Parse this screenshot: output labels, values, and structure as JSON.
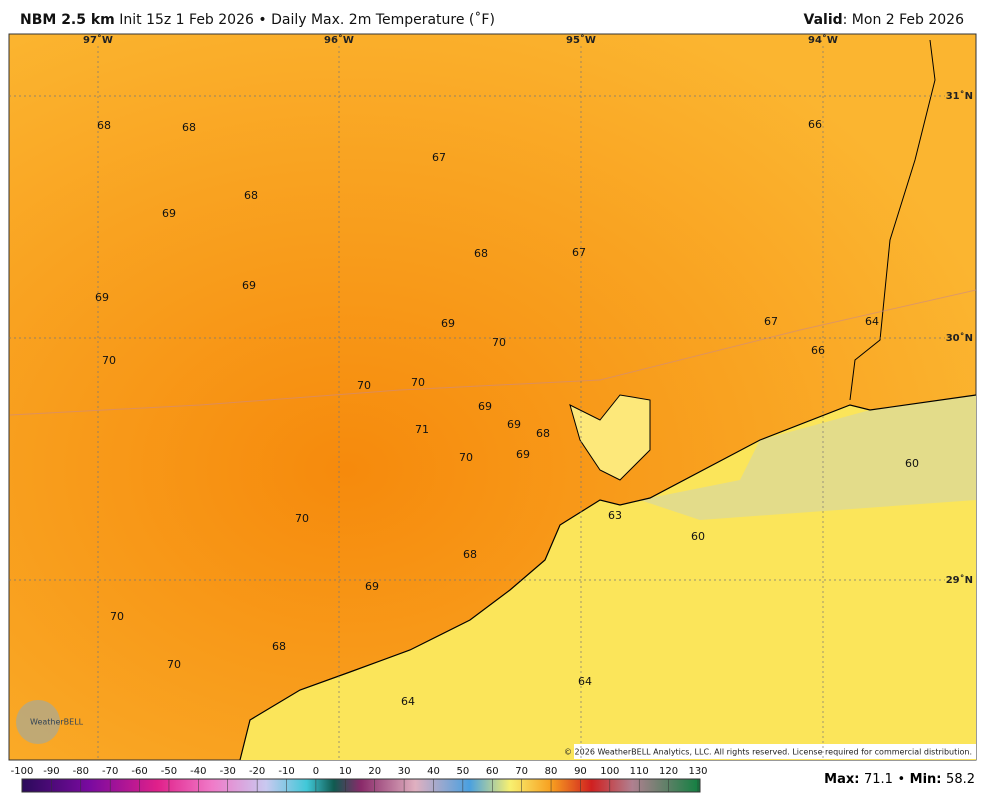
{
  "header": {
    "model": "NBM 2.5 km",
    "init": "Init 15z 1 Feb 2026",
    "separator": "•",
    "product": "Daily Max. 2m Temperature (˚F)",
    "valid": {
      "label": "Valid",
      "text": ": Mon 2 Feb 2026"
    }
  },
  "map": {
    "longitudes": [
      "97˚W",
      "96˚W",
      "95˚W",
      "94˚W"
    ],
    "latitudes": [
      "31˚N",
      "30˚N",
      "29˚N"
    ],
    "stations": [
      68,
      68,
      67,
      66,
      68,
      69,
      68,
      67,
      69,
      69,
      69,
      70,
      67,
      64,
      66,
      70,
      70,
      70,
      69,
      69,
      68,
      71,
      70,
      69,
      60,
      63,
      70,
      60,
      68,
      69,
      70,
      68,
      70,
      64,
      64
    ],
    "logo": "WeatherBELL",
    "copyright": "© 2026 WeatherBELL Analytics, LLC. All rights reserved. License required for commercial distribution."
  },
  "colorbar": {
    "ticks": [
      -100,
      -90,
      -80,
      -70,
      -60,
      -50,
      -40,
      -30,
      -20,
      -10,
      0,
      10,
      20,
      30,
      40,
      50,
      60,
      70,
      80,
      90,
      100,
      110,
      120,
      130
    ]
  },
  "footer": {
    "max_label": "Max:",
    "max": 71.1,
    "separator": "•",
    "min_label": "Min:",
    "min": 58.2
  }
}
